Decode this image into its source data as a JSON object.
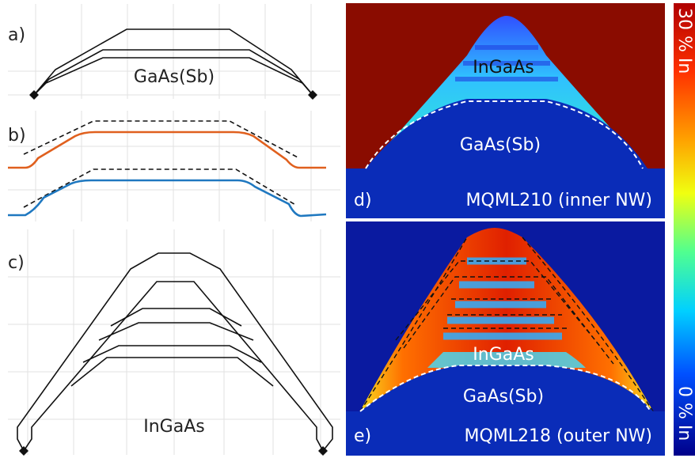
{
  "panels": {
    "a": {
      "label": "a)",
      "material": "GaAs(Sb)"
    },
    "b": {
      "label": "b)"
    },
    "c": {
      "label": "c)",
      "material": "InGaAs"
    },
    "d": {
      "label": "d)",
      "shell": "InGaAs",
      "core": "GaAs(Sb)",
      "sample": "MQML210 (inner NW)"
    },
    "e": {
      "label": "e)",
      "shell": "InGaAs",
      "core": "GaAs(Sb)",
      "sample": "MQML218 (outer NW)"
    }
  },
  "colorbar": {
    "max_label": "30 % In",
    "min_label": "0 % In"
  }
}
